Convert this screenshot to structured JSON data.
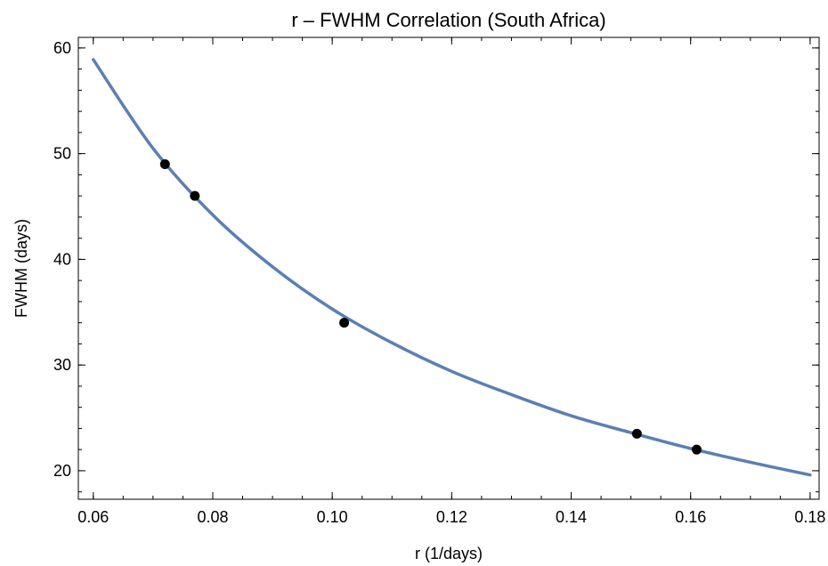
{
  "chart_data": {
    "type": "scatter",
    "title": "r – FWHM Correlation (South Africa)",
    "xlabel": "r (1/days)",
    "ylabel": "FWHM (days)",
    "xlim": [
      0.0575,
      0.1815
    ],
    "ylim": [
      17.3,
      61.0
    ],
    "x_ticks": [
      0.06,
      0.08,
      0.1,
      0.12,
      0.14,
      0.16,
      0.18
    ],
    "x_tick_labels": [
      "0.06",
      "0.08",
      "0.10",
      "0.12",
      "0.14",
      "0.16",
      "0.18"
    ],
    "y_ticks": [
      20,
      30,
      40,
      50,
      60
    ],
    "y_tick_labels": [
      "20",
      "30",
      "40",
      "50",
      "60"
    ],
    "grid": false,
    "series": [
      {
        "type": "scatter",
        "color": "#000000",
        "points": [
          {
            "x": 0.072,
            "y": 49.0
          },
          {
            "x": 0.077,
            "y": 46.0
          },
          {
            "x": 0.102,
            "y": 34.0
          },
          {
            "x": 0.151,
            "y": 23.5
          },
          {
            "x": 0.161,
            "y": 22.0
          }
        ]
      },
      {
        "type": "line",
        "color": "#5b7fb4",
        "points": [
          {
            "x": 0.06,
            "y": 58.9
          },
          {
            "x": 0.07,
            "y": 50.5
          },
          {
            "x": 0.08,
            "y": 44.2
          },
          {
            "x": 0.09,
            "y": 39.3
          },
          {
            "x": 0.1,
            "y": 35.3
          },
          {
            "x": 0.11,
            "y": 32.1
          },
          {
            "x": 0.12,
            "y": 29.4
          },
          {
            "x": 0.13,
            "y": 27.2
          },
          {
            "x": 0.14,
            "y": 25.2
          },
          {
            "x": 0.15,
            "y": 23.6
          },
          {
            "x": 0.16,
            "y": 22.1
          },
          {
            "x": 0.17,
            "y": 20.8
          },
          {
            "x": 0.18,
            "y": 19.6
          }
        ]
      }
    ]
  }
}
